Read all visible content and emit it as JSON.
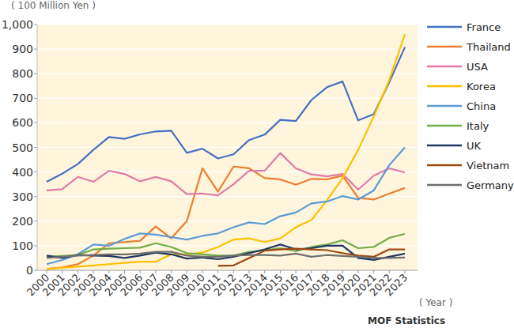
{
  "chart_data": {
    "type": "line",
    "y_label": "( 100 Million Yen )",
    "x_label": "( Year )",
    "annotations": [
      "MOF Statistics"
    ],
    "categories": [
      "2000",
      "2001",
      "2002",
      "2003",
      "2004",
      "2005",
      "2006",
      "2007",
      "2008",
      "2009",
      "2010",
      "2011",
      "2012",
      "2013",
      "2014",
      "2015",
      "2016",
      "2017",
      "2018",
      "2019",
      "2020",
      "2021",
      "2022",
      "2023"
    ],
    "series": [
      {
        "name": "France",
        "color": "#4472c4",
        "values": [
          360,
          393,
          432,
          490,
          542,
          535,
          553,
          565,
          568,
          478,
          495,
          455,
          472,
          530,
          552,
          612,
          607,
          693,
          745,
          768,
          610,
          635,
          765,
          908
        ]
      },
      {
        "name": "Thailand",
        "color": "#ed7d31",
        "values": [
          5,
          12,
          25,
          60,
          110,
          115,
          120,
          178,
          130,
          200,
          415,
          320,
          422,
          415,
          375,
          370,
          348,
          372,
          370,
          385,
          295,
          288,
          312,
          335
        ]
      },
      {
        "name": "USA",
        "color": "#e07ba8",
        "values": [
          325,
          330,
          380,
          360,
          405,
          392,
          362,
          380,
          362,
          310,
          312,
          305,
          350,
          405,
          405,
          477,
          415,
          390,
          382,
          392,
          328,
          385,
          415,
          398
        ]
      },
      {
        "name": "Korea",
        "color": "#ffc000",
        "values": [
          5,
          10,
          15,
          20,
          25,
          30,
          35,
          35,
          65,
          65,
          72,
          95,
          125,
          130,
          115,
          130,
          175,
          205,
          285,
          375,
          490,
          625,
          775,
          960
        ]
      },
      {
        "name": "China",
        "color": "#5b9bd5",
        "values": [
          25,
          42,
          65,
          105,
          100,
          128,
          150,
          145,
          135,
          125,
          140,
          150,
          175,
          195,
          188,
          220,
          235,
          272,
          280,
          302,
          288,
          325,
          428,
          500
        ]
      },
      {
        "name": "Italy",
        "color": "#70ad47",
        "values": [
          55,
          58,
          62,
          85,
          88,
          90,
          92,
          110,
          95,
          70,
          65,
          60,
          60,
          75,
          82,
          90,
          78,
          95,
          105,
          122,
          90,
          95,
          132,
          148
        ]
      },
      {
        "name": "UK",
        "color": "#1f3864",
        "values": [
          60,
          50,
          62,
          60,
          58,
          50,
          60,
          72,
          65,
          48,
          52,
          45,
          55,
          70,
          85,
          105,
          85,
          90,
          100,
          100,
          50,
          42,
          55,
          68
        ]
      },
      {
        "name": "Vietnam",
        "color": "#9e480e",
        "values": [
          null,
          null,
          null,
          null,
          null,
          null,
          null,
          null,
          null,
          null,
          null,
          18,
          20,
          50,
          80,
          85,
          88,
          85,
          82,
          70,
          60,
          55,
          85,
          85
        ]
      },
      {
        "name": "Germany",
        "color": "#6f6f6f",
        "values": [
          50,
          55,
          60,
          62,
          65,
          65,
          68,
          75,
          75,
          60,
          55,
          55,
          60,
          62,
          62,
          60,
          68,
          55,
          62,
          58,
          55,
          50,
          50,
          52
        ]
      }
    ],
    "ylim": [
      0,
      1000
    ],
    "yticks": [
      0,
      100,
      200,
      300,
      400,
      500,
      600,
      700,
      800,
      900,
      {
        "value": 1000,
        "label": "1,000"
      }
    ],
    "grid": true,
    "legend": "right"
  }
}
